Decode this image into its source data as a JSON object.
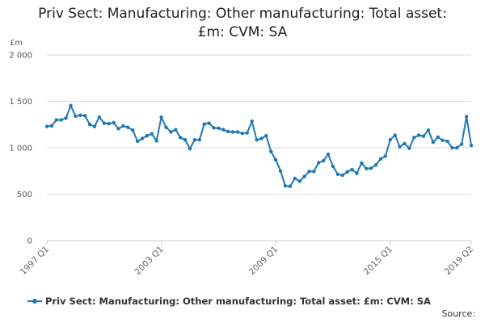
{
  "title_line1": "Priv Sect: Manufacturing: Other manufacturing: Total asset:",
  "title_line2": "£m: CVM: SA",
  "source_label": "Source:",
  "colors": {
    "series": "#1f78b4",
    "grid": "#d9d9d9",
    "axis": "#cccccc",
    "text": "#555555"
  },
  "chart_data": {
    "type": "line",
    "ylabel": "£m",
    "ylim": [
      0,
      2000
    ],
    "yticks": [
      0,
      500,
      1000,
      1500,
      2000
    ],
    "ytick_labels": [
      "0",
      "500",
      "1 000",
      "1 500",
      "2 000"
    ],
    "xtick_labels": [
      "1997 Q1",
      "2003 Q1",
      "2009 Q1",
      "2015 Q1",
      "2019 Q2"
    ],
    "xtick_indices": [
      0,
      24,
      48,
      72,
      89
    ],
    "legend": "top-left below chart",
    "series": [
      {
        "name": "Priv Sect: Manufacturing: Other manufacturing: Total asset: £m: CVM: SA",
        "x": [
          "1997 Q1",
          "1997 Q2",
          "1997 Q3",
          "1997 Q4",
          "1998 Q1",
          "1998 Q2",
          "1998 Q3",
          "1998 Q4",
          "1999 Q1",
          "1999 Q2",
          "1999 Q3",
          "1999 Q4",
          "2000 Q1",
          "2000 Q2",
          "2000 Q3",
          "2000 Q4",
          "2001 Q1",
          "2001 Q2",
          "2001 Q3",
          "2001 Q4",
          "2002 Q1",
          "2002 Q2",
          "2002 Q3",
          "2002 Q4",
          "2003 Q1",
          "2003 Q2",
          "2003 Q3",
          "2003 Q4",
          "2004 Q1",
          "2004 Q2",
          "2004 Q3",
          "2004 Q4",
          "2005 Q1",
          "2005 Q2",
          "2005 Q3",
          "2005 Q4",
          "2006 Q1",
          "2006 Q2",
          "2006 Q3",
          "2006 Q4",
          "2007 Q1",
          "2007 Q2",
          "2007 Q3",
          "2007 Q4",
          "2008 Q1",
          "2008 Q2",
          "2008 Q3",
          "2008 Q4",
          "2009 Q1",
          "2009 Q2",
          "2009 Q3",
          "2009 Q4",
          "2010 Q1",
          "2010 Q2",
          "2010 Q3",
          "2010 Q4",
          "2011 Q1",
          "2011 Q2",
          "2011 Q3",
          "2011 Q4",
          "2012 Q1",
          "2012 Q2",
          "2012 Q3",
          "2012 Q4",
          "2013 Q1",
          "2013 Q2",
          "2013 Q3",
          "2013 Q4",
          "2014 Q1",
          "2014 Q2",
          "2014 Q3",
          "2014 Q4",
          "2015 Q1",
          "2015 Q2",
          "2015 Q3",
          "2015 Q4",
          "2016 Q1",
          "2016 Q2",
          "2016 Q3",
          "2016 Q4",
          "2017 Q1",
          "2017 Q2",
          "2017 Q3",
          "2017 Q4",
          "2018 Q1",
          "2018 Q2",
          "2018 Q3",
          "2018 Q4",
          "2019 Q1",
          "2019 Q2"
        ],
        "values": [
          1230,
          1235,
          1300,
          1300,
          1320,
          1455,
          1340,
          1350,
          1345,
          1250,
          1230,
          1330,
          1265,
          1260,
          1270,
          1205,
          1235,
          1220,
          1190,
          1070,
          1100,
          1130,
          1150,
          1075,
          1330,
          1220,
          1170,
          1195,
          1110,
          1085,
          990,
          1085,
          1085,
          1255,
          1265,
          1215,
          1210,
          1195,
          1175,
          1170,
          1170,
          1155,
          1160,
          1285,
          1085,
          1100,
          1130,
          960,
          870,
          750,
          590,
          585,
          670,
          640,
          690,
          745,
          745,
          840,
          860,
          930,
          800,
          715,
          705,
          740,
          765,
          725,
          835,
          775,
          780,
          815,
          880,
          910,
          1085,
          1135,
          1010,
          1045,
          995,
          1110,
          1135,
          1125,
          1190,
          1060,
          1115,
          1080,
          1070,
          1000,
          1000,
          1040,
          1335,
          1025
        ]
      }
    ]
  }
}
